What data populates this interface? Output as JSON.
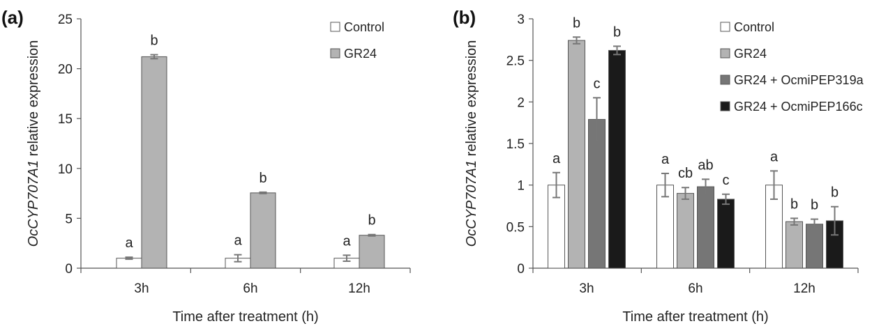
{
  "chart_data": [
    {
      "type": "bar",
      "panel_label": "(a)",
      "categories": [
        "3h",
        "6h",
        "12h"
      ],
      "xlabel": "Time after treatment (h)",
      "ylabel_italic": "OcCYP707A1",
      "ylabel_rest": " relative expression",
      "ylim": [
        0,
        25
      ],
      "yticks": [
        0,
        5,
        10,
        15,
        20,
        25
      ],
      "legend_position": "top-right",
      "series": [
        {
          "name": "Control",
          "color": "#ffffff",
          "values": [
            1.0,
            1.0,
            1.0
          ],
          "errors": [
            0.1,
            0.35,
            0.3
          ],
          "letters": [
            "a",
            "a",
            "a"
          ]
        },
        {
          "name": "GR24",
          "color": "#b3b3b3",
          "values": [
            21.2,
            7.55,
            3.3
          ],
          "errors": [
            0.2,
            0.07,
            0.07
          ],
          "letters": [
            "b",
            "b",
            "b"
          ]
        }
      ]
    },
    {
      "type": "bar",
      "panel_label": "(b)",
      "categories": [
        "3h",
        "6h",
        "12h"
      ],
      "xlabel": "Time after treatment (h)",
      "ylabel_italic": "OcCYP707A1",
      "ylabel_rest": " relative expression",
      "ylim": [
        0,
        3
      ],
      "yticks": [
        0,
        0.5,
        1,
        1.5,
        2,
        2.5,
        3
      ],
      "legend_position": "top-right",
      "series": [
        {
          "name": "Control",
          "color": "#ffffff",
          "values": [
            1.0,
            1.0,
            1.0
          ],
          "errors": [
            0.15,
            0.14,
            0.17
          ],
          "letters": [
            "a",
            "a",
            "a"
          ]
        },
        {
          "name": "GR24",
          "color": "#b3b3b3",
          "values": [
            2.74,
            0.9,
            0.56
          ],
          "errors": [
            0.04,
            0.07,
            0.04
          ],
          "letters": [
            "b",
            "cb",
            "b"
          ]
        },
        {
          "name": "GR24 + OcmiPEP319a",
          "color": "#767676",
          "values": [
            1.79,
            0.98,
            0.53
          ],
          "errors": [
            0.26,
            0.09,
            0.06
          ],
          "letters": [
            "c",
            "ab",
            "b"
          ]
        },
        {
          "name": "GR24 + OcmiPEP166c",
          "color": "#1a1a1a",
          "values": [
            2.62,
            0.83,
            0.57
          ],
          "errors": [
            0.05,
            0.06,
            0.17
          ],
          "letters": [
            "b",
            "c",
            "b"
          ]
        }
      ]
    }
  ]
}
